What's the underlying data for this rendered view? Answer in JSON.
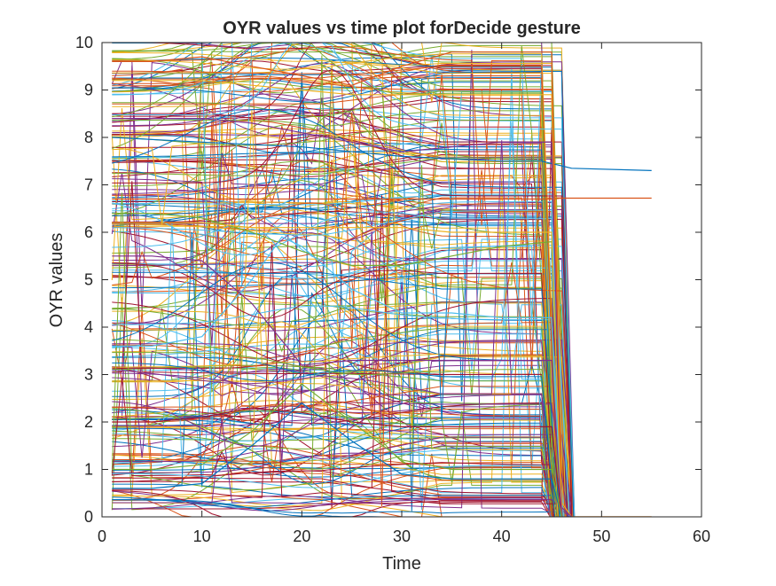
{
  "chart_data": {
    "type": "line",
    "title": "OYR values vs time plot forDecide gesture",
    "xlabel": "Time",
    "ylabel": "OYR values",
    "xlim": [
      0,
      60
    ],
    "ylim": [
      0,
      10
    ],
    "xticks": [
      0,
      10,
      20,
      30,
      40,
      50,
      60
    ],
    "yticks": [
      0,
      1,
      2,
      3,
      4,
      5,
      6,
      7,
      8,
      9,
      10
    ],
    "xtick_labels": [
      "0",
      "10",
      "20",
      "30",
      "40",
      "50",
      "60"
    ],
    "ytick_labels": [
      "0",
      "1",
      "2",
      "3",
      "4",
      "5",
      "6",
      "7",
      "8",
      "9",
      "10"
    ],
    "grid": false,
    "legend": "none",
    "color_order": [
      "#0072BD",
      "#D95319",
      "#EDB120",
      "#7E2F8E",
      "#77AC30",
      "#4DBEEE",
      "#A2142F"
    ],
    "series": [
      {
        "x": [
          1,
          10,
          20,
          30,
          40,
          44,
          45,
          46,
          47,
          55
        ],
        "values": [
          8.0,
          7.9,
          7.8,
          7.6,
          7.5,
          7.5,
          7.45,
          7.4,
          7.35,
          7.3
        ]
      },
      {
        "x": [
          1,
          10,
          20,
          30,
          40,
          45,
          46,
          55
        ],
        "values": [
          6.7,
          6.7,
          6.7,
          6.7,
          6.7,
          6.7,
          6.72,
          6.72
        ]
      },
      {
        "x": [
          1,
          5,
          10,
          15,
          20,
          25,
          30,
          35,
          40,
          45,
          46,
          47,
          55
        ],
        "values": [
          9.2,
          9.2,
          9.2,
          9.1,
          9.0,
          8.9,
          8.9,
          8.9,
          8.9,
          8.9,
          0.3,
          0.0,
          0.0
        ]
      },
      {
        "x": [
          1,
          5,
          10,
          15,
          20,
          25,
          30,
          35,
          40,
          45,
          46,
          47
        ],
        "values": [
          8.4,
          8.4,
          8.4,
          8.3,
          8.1,
          7.9,
          7.7,
          7.8,
          7.9,
          7.9,
          0.2,
          0.0
        ]
      },
      {
        "x": [
          1,
          5,
          10,
          15,
          20,
          25,
          30,
          35,
          40,
          45,
          46
        ],
        "values": [
          6.4,
          6.4,
          6.3,
          6.0,
          5.6,
          5.3,
          5.3,
          5.5,
          5.7,
          5.8,
          0.0
        ]
      },
      {
        "x": [
          1,
          5,
          10,
          15,
          18,
          20,
          25,
          30,
          35,
          40,
          45,
          46
        ],
        "values": [
          3.6,
          3.6,
          3.8,
          5.0,
          5.9,
          5.7,
          4.8,
          4.3,
          4.3,
          4.2,
          4.2,
          0.0
        ]
      },
      {
        "x": [
          1,
          5,
          10,
          15,
          20,
          25,
          30,
          35,
          40,
          45,
          46
        ],
        "values": [
          2.0,
          2.0,
          2.1,
          2.3,
          2.2,
          2.0,
          1.9,
          1.9,
          1.9,
          1.9,
          0.0
        ]
      },
      {
        "x": [
          1,
          5,
          10,
          15,
          20,
          25,
          30,
          35,
          40,
          45,
          46
        ],
        "values": [
          0.6,
          0.6,
          0.7,
          1.5,
          2.4,
          1.6,
          0.9,
          0.8,
          0.8,
          0.8,
          0.0
        ]
      },
      {
        "x": [
          1,
          5,
          10,
          15,
          20,
          25,
          30,
          35,
          40,
          45,
          46
        ],
        "values": [
          9.6,
          9.6,
          9.7,
          9.5,
          9.3,
          9.1,
          9.5,
          9.8,
          9.8,
          9.8,
          0.0
        ]
      },
      {
        "x": [
          1,
          5,
          10,
          15,
          20,
          25,
          30,
          35,
          40,
          45,
          46
        ],
        "values": [
          6.2,
          6.2,
          6.2,
          6.1,
          6.1,
          6.1,
          6.1,
          6.0,
          6.0,
          6.0,
          0.0
        ]
      },
      {
        "x": [
          1,
          5,
          10,
          15,
          20,
          25,
          30,
          35,
          40,
          45,
          46
        ],
        "values": [
          5.5,
          5.5,
          5.4,
          4.5,
          3.2,
          3.3,
          3.3,
          3.3,
          3.3,
          3.3,
          0.0
        ]
      },
      {
        "x": [
          1,
          5,
          10,
          15,
          20,
          25,
          30,
          35,
          40,
          45,
          46
        ],
        "values": [
          1.0,
          1.0,
          1.1,
          1.8,
          2.8,
          2.0,
          1.2,
          1.0,
          1.0,
          1.0,
          0.0
        ]
      }
    ]
  }
}
